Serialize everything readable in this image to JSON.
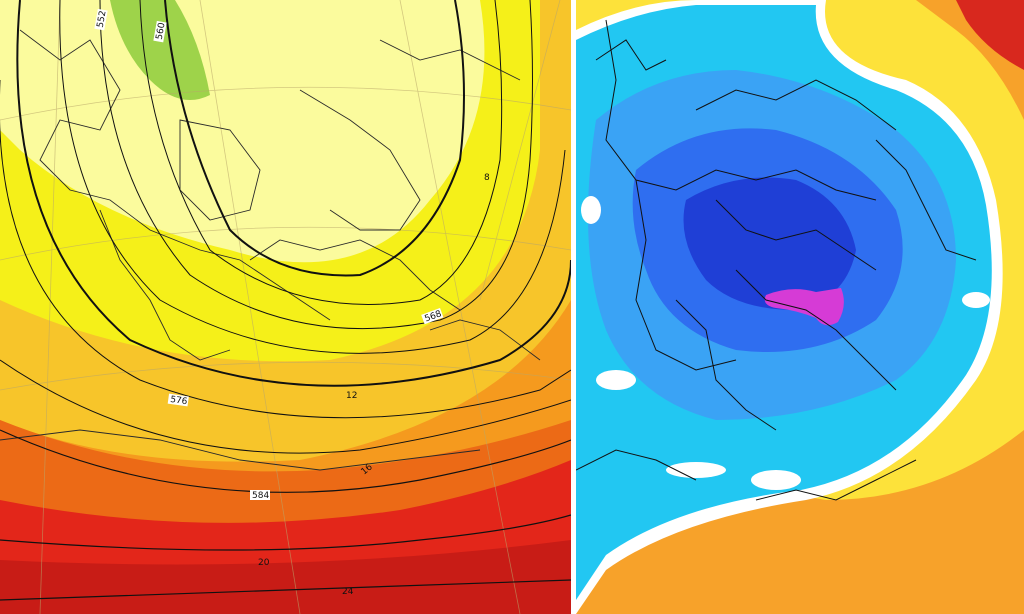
{
  "left_map": {
    "contour_labels": {
      "c560": "560",
      "c568": "568",
      "c576": "576",
      "c584": "584",
      "c552": "552",
      "s8": "8",
      "s12": "12",
      "s16": "16",
      "s20": "20",
      "s24": "24"
    },
    "colors": {
      "pale_yellow": "#fbfb9d",
      "yellow": "#f5f019",
      "light_orange": "#f7c52a",
      "orange": "#f59a1e",
      "dark_orange": "#ec6a16",
      "red": "#e3261a",
      "green": "#9ed34a",
      "contour": "#111111"
    }
  },
  "right_map": {
    "colors": {
      "deep_blue": "#1f3fd6",
      "blue": "#2f6ef0",
      "light_blue": "#3aa3f5",
      "cyan": "#22c7f2",
      "white": "#ffffff",
      "yellow": "#fde23a",
      "orange": "#f7a22a",
      "red": "#d8281e",
      "magenta": "#d63bd6"
    }
  }
}
